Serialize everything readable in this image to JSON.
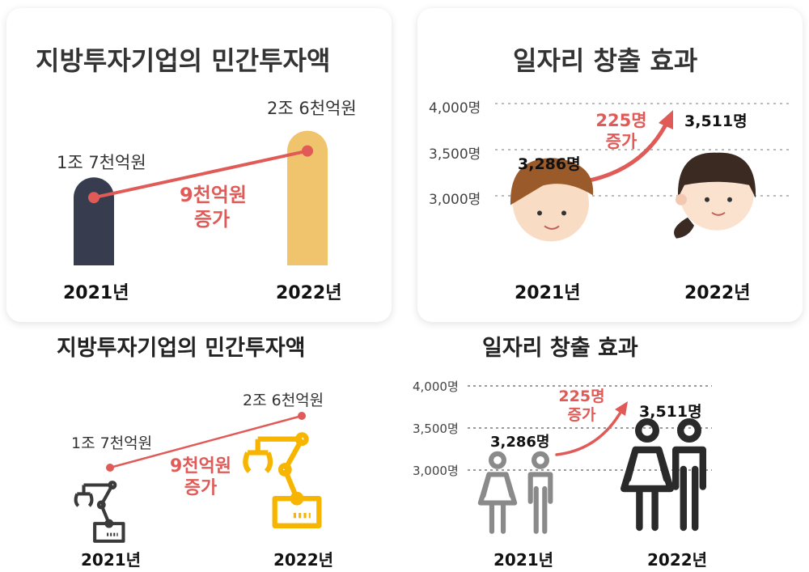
{
  "chart_data": [
    {
      "type": "bar",
      "title": "지방투자기업의 민간투자액",
      "categories": [
        "2021년",
        "2022년"
      ],
      "values": [
        1.7,
        2.6
      ],
      "value_labels": [
        "1조 7천억원",
        "2조 6천억원"
      ],
      "annotation": [
        "9천억원",
        "증가"
      ],
      "colors": [
        "#373d4f",
        "#efc46c"
      ],
      "trend_color": "#e05a57"
    },
    {
      "type": "scatter",
      "title": "일자리 창출 효과",
      "categories": [
        "2021년",
        "2022년"
      ],
      "values": [
        3286,
        3511
      ],
      "value_labels": [
        "3,286명",
        "3,511명"
      ],
      "y_ticks": [
        "4,000명",
        "3,500명",
        "3,000명"
      ],
      "y_tick_values": [
        4000,
        3500,
        3000
      ],
      "ylim": [
        3000,
        4000
      ],
      "annotation": [
        "225명",
        "증가"
      ],
      "grid": true,
      "accent": "#e05a57"
    },
    {
      "type": "bar",
      "title": "지방투자기업의 민간투자액",
      "categories": [
        "2021년",
        "2022년"
      ],
      "values": [
        1.7,
        2.6
      ],
      "value_labels": [
        "1조 7천억원",
        "2조 6천억원"
      ],
      "annotation": [
        "9천억원",
        "증가"
      ],
      "icons": [
        "robot-arm-icon",
        "robot-arm-icon"
      ],
      "colors": [
        "#3a3a3a",
        "#f7b500"
      ],
      "trend_color": "#e05a57"
    },
    {
      "type": "scatter",
      "title": "일자리 창출 효과",
      "categories": [
        "2021년",
        "2022년"
      ],
      "values": [
        3286,
        3511
      ],
      "value_labels": [
        "3,286명",
        "3,511명"
      ],
      "y_ticks": [
        "4,000명",
        "3,500명",
        "3,000명"
      ],
      "y_tick_values": [
        4000,
        3500,
        3000
      ],
      "ylim": [
        3000,
        4000
      ],
      "annotation": [
        "225명",
        "증가"
      ],
      "icons": [
        "person-icon",
        "person-icon"
      ],
      "colors": [
        "#8a8a8a",
        "#2a2a2a"
      ],
      "grid": true,
      "accent": "#e05a57"
    }
  ]
}
